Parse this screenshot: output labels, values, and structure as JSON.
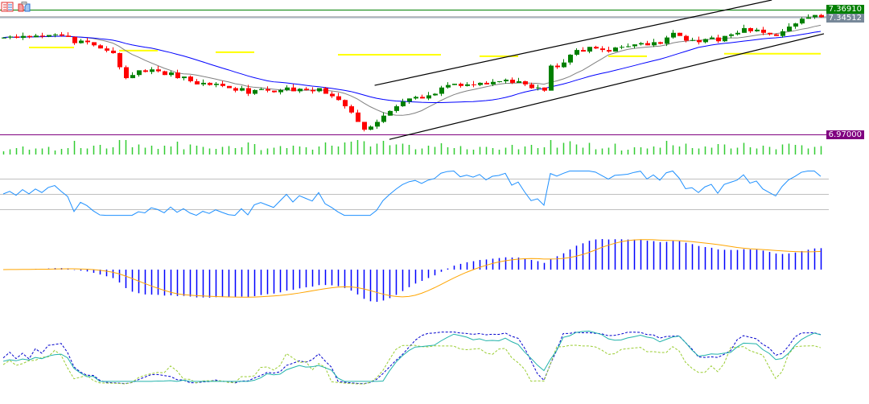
{
  "toolbar": {
    "icons": [
      "one-click-trading-icon",
      "depth-of-market-icon"
    ]
  },
  "price_labels": {
    "ask_line": {
      "text": "7.36910",
      "color": "#008000"
    },
    "bid_line": {
      "text": "7.34512",
      "color": "#778899"
    },
    "support_line": {
      "text": "6.97000",
      "color": "#800080"
    }
  },
  "chart_data": {
    "type": "candlestick",
    "price_scale": {
      "top_price": 7.3691,
      "bottom_price": 6.97
    },
    "horizontal_levels": [
      7.3691,
      7.34512,
      6.97
    ],
    "colors": {
      "bull": "#008000",
      "bear": "#ff0000",
      "ma_fast": "#808080",
      "ma_slow": "#0000ff",
      "ma_htf": "#ffff00",
      "volume": "#32cd32",
      "rsi": "#1e90ff",
      "macd_hist": "#0000ff",
      "macd_signal": "#ffa500",
      "osc_main": "#20b2aa",
      "osc_k": "#0000cd",
      "osc_d": "#9acd32"
    },
    "closes": [
      7.28,
      7.283,
      7.279,
      7.285,
      7.281,
      7.286,
      7.283,
      7.288,
      7.29,
      7.286,
      7.282,
      7.262,
      7.27,
      7.265,
      7.255,
      7.245,
      7.238,
      7.23,
      7.185,
      7.15,
      7.16,
      7.175,
      7.17,
      7.178,
      7.172,
      7.16,
      7.168,
      7.15,
      7.155,
      7.14,
      7.13,
      7.135,
      7.128,
      7.132,
      7.125,
      7.118,
      7.11,
      7.118,
      7.1,
      7.112,
      7.115,
      7.11,
      7.105,
      7.112,
      7.12,
      7.108,
      7.116,
      7.112,
      7.108,
      7.118,
      7.1,
      7.092,
      7.08,
      7.06,
      7.04,
      7.01,
      6.985,
      6.995,
      7.01,
      7.03,
      7.045,
      7.06,
      7.075,
      7.085,
      7.09,
      7.085,
      7.095,
      7.1,
      7.12,
      7.128,
      7.132,
      7.125,
      7.13,
      7.128,
      7.135,
      7.13,
      7.138,
      7.14,
      7.145,
      7.135,
      7.14,
      7.13,
      7.118,
      7.12,
      7.11,
      7.19,
      7.185,
      7.2,
      7.225,
      7.24,
      7.235,
      7.25,
      7.245,
      7.24,
      7.235,
      7.248,
      7.25,
      7.252,
      7.258,
      7.262,
      7.255,
      7.265,
      7.26,
      7.28,
      7.295,
      7.285,
      7.27,
      7.272,
      7.265,
      7.275,
      7.28,
      7.268,
      7.285,
      7.29,
      7.295,
      7.31,
      7.3,
      7.305,
      7.295,
      7.29,
      7.285,
      7.3,
      7.315,
      7.325,
      7.34,
      7.345,
      7.352,
      7.345
    ],
    "ma_htf_steps": [
      {
        "from": 4,
        "to": 11,
        "price": 7.248
      },
      {
        "from": 18,
        "to": 24,
        "price": 7.238
      },
      {
        "from": 33,
        "to": 39,
        "price": 7.233
      },
      {
        "from": 52,
        "to": 68,
        "price": 7.225
      },
      {
        "from": 74,
        "to": 80,
        "price": 7.22
      },
      {
        "from": 94,
        "to": 100,
        "price": 7.22
      },
      {
        "from": 112,
        "to": 127,
        "price": 7.228
      }
    ],
    "channel_lines": [
      {
        "from": [
          57.7,
          7.127
        ],
        "to": [
          119.4,
          7.4
        ]
      },
      {
        "from": [
          60,
          6.954
        ],
        "to": [
          127.5,
          7.292
        ]
      }
    ],
    "rsi_levels": [
      70,
      50,
      30
    ],
    "panels": [
      "price",
      "volume",
      "rsi",
      "macd",
      "oscillator"
    ]
  }
}
